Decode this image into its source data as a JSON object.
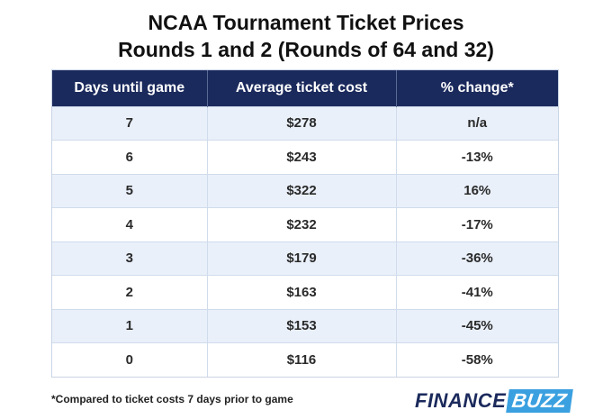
{
  "header": {
    "title_line1": "NCAA Tournament Ticket Prices",
    "title_line2": "Rounds 1 and 2 (Rounds of 64 and 32)"
  },
  "colors": {
    "header_bg": "#1b2a5c",
    "row_alt": "#e9f0fa",
    "brand_accent": "#3aa0e0"
  },
  "chart_data": {
    "type": "table",
    "columns": [
      "Days until game",
      "Average ticket cost",
      "% change*"
    ],
    "rows": [
      [
        "7",
        "$278",
        "n/a"
      ],
      [
        "6",
        "$243",
        "-13%"
      ],
      [
        "5",
        "$322",
        "16%"
      ],
      [
        "4",
        "$232",
        "-17%"
      ],
      [
        "3",
        "$179",
        "-36%"
      ],
      [
        "2",
        "$163",
        "-41%"
      ],
      [
        "1",
        "$153",
        "-45%"
      ],
      [
        "0",
        "$116",
        "-58%"
      ]
    ]
  },
  "footer": {
    "footnote": "*Compared to ticket costs 7 days prior to game",
    "logo_part1": "FINANCE",
    "logo_part2": "BUZZ"
  }
}
